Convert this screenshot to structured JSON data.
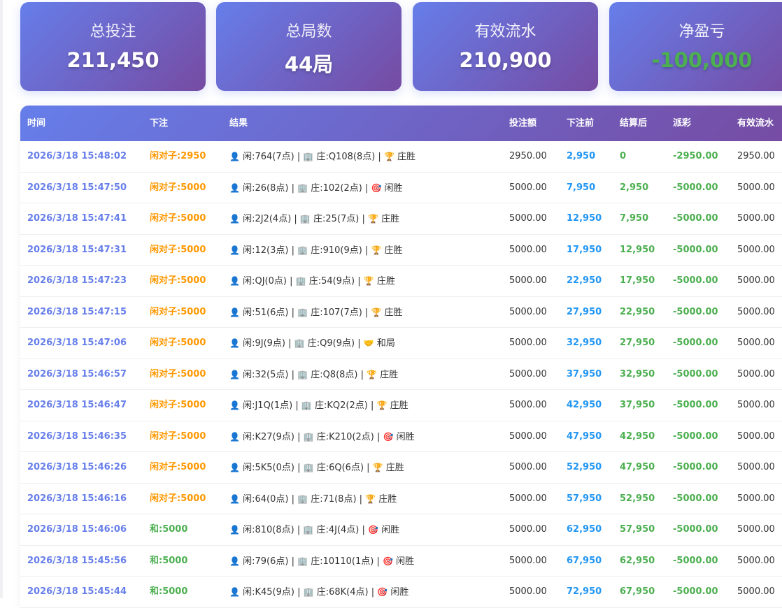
{
  "summary": [
    {
      "label": "总投注",
      "value": "211,450"
    },
    {
      "label": "总局数",
      "value": "44局"
    },
    {
      "label": "有效流水",
      "value": "210,900"
    },
    {
      "label": "净盈亏",
      "value": "-100,000",
      "color": "#4caf50"
    }
  ],
  "table": {
    "headers": [
      "时间",
      "下注",
      "结果",
      "投注额",
      "下注前",
      "结算后",
      "派彩",
      "有效流水"
    ],
    "colors": {
      "time": "#667eea",
      "bet_pair": "#ff9800",
      "bet_tie": "#4caf50",
      "before": "#2196f3",
      "after": "#4caf50",
      "payout": "#4caf50"
    },
    "icons": {
      "player": "bust-silhouette-icon",
      "banker": "office-building-icon",
      "banker_win": "trophy-icon",
      "player_win": "target-icon",
      "tie": "handshake-icon"
    },
    "rows": [
      {
        "time": "2026/3/18 15:48:02",
        "bet": "闲对子:2950",
        "bet_type": "pair",
        "player": "闲:764(7点)",
        "banker": "庄:Q108(8点)",
        "outcome": "庄胜",
        "outcome_icon": "banker_win",
        "amount": "2950.00",
        "before": "2,950",
        "after": "0",
        "payout": "-2950.00",
        "effective": "2950.00"
      },
      {
        "time": "2026/3/18 15:47:50",
        "bet": "闲对子:5000",
        "bet_type": "pair",
        "player": "闲:26(8点)",
        "banker": "庄:102(2点)",
        "outcome": "闲胜",
        "outcome_icon": "player_win",
        "amount": "5000.00",
        "before": "7,950",
        "after": "2,950",
        "payout": "-5000.00",
        "effective": "5000.00"
      },
      {
        "time": "2026/3/18 15:47:41",
        "bet": "闲对子:5000",
        "bet_type": "pair",
        "player": "闲:2J2(4点)",
        "banker": "庄:25(7点)",
        "outcome": "庄胜",
        "outcome_icon": "banker_win",
        "amount": "5000.00",
        "before": "12,950",
        "after": "7,950",
        "payout": "-5000.00",
        "effective": "5000.00"
      },
      {
        "time": "2026/3/18 15:47:31",
        "bet": "闲对子:5000",
        "bet_type": "pair",
        "player": "闲:12(3点)",
        "banker": "庄:910(9点)",
        "outcome": "庄胜",
        "outcome_icon": "banker_win",
        "amount": "5000.00",
        "before": "17,950",
        "after": "12,950",
        "payout": "-5000.00",
        "effective": "5000.00"
      },
      {
        "time": "2026/3/18 15:47:23",
        "bet": "闲对子:5000",
        "bet_type": "pair",
        "player": "闲:QJ(0点)",
        "banker": "庄:54(9点)",
        "outcome": "庄胜",
        "outcome_icon": "banker_win",
        "amount": "5000.00",
        "before": "22,950",
        "after": "17,950",
        "payout": "-5000.00",
        "effective": "5000.00"
      },
      {
        "time": "2026/3/18 15:47:15",
        "bet": "闲对子:5000",
        "bet_type": "pair",
        "player": "闲:51(6点)",
        "banker": "庄:107(7点)",
        "outcome": "庄胜",
        "outcome_icon": "banker_win",
        "amount": "5000.00",
        "before": "27,950",
        "after": "22,950",
        "payout": "-5000.00",
        "effective": "5000.00"
      },
      {
        "time": "2026/3/18 15:47:06",
        "bet": "闲对子:5000",
        "bet_type": "pair",
        "player": "闲:9J(9点)",
        "banker": "庄:Q9(9点)",
        "outcome": "和局",
        "outcome_icon": "tie",
        "amount": "5000.00",
        "before": "32,950",
        "after": "27,950",
        "payout": "-5000.00",
        "effective": "5000.00"
      },
      {
        "time": "2026/3/18 15:46:57",
        "bet": "闲对子:5000",
        "bet_type": "pair",
        "player": "闲:32(5点)",
        "banker": "庄:Q8(8点)",
        "outcome": "庄胜",
        "outcome_icon": "banker_win",
        "amount": "5000.00",
        "before": "37,950",
        "after": "32,950",
        "payout": "-5000.00",
        "effective": "5000.00"
      },
      {
        "time": "2026/3/18 15:46:47",
        "bet": "闲对子:5000",
        "bet_type": "pair",
        "player": "闲:J1Q(1点)",
        "banker": "庄:KQ2(2点)",
        "outcome": "庄胜",
        "outcome_icon": "banker_win",
        "amount": "5000.00",
        "before": "42,950",
        "after": "37,950",
        "payout": "-5000.00",
        "effective": "5000.00"
      },
      {
        "time": "2026/3/18 15:46:35",
        "bet": "闲对子:5000",
        "bet_type": "pair",
        "player": "闲:K27(9点)",
        "banker": "庄:K210(2点)",
        "outcome": "闲胜",
        "outcome_icon": "player_win",
        "amount": "5000.00",
        "before": "47,950",
        "after": "42,950",
        "payout": "-5000.00",
        "effective": "5000.00"
      },
      {
        "time": "2026/3/18 15:46:26",
        "bet": "闲对子:5000",
        "bet_type": "pair",
        "player": "闲:5K5(0点)",
        "banker": "庄:6Q(6点)",
        "outcome": "庄胜",
        "outcome_icon": "banker_win",
        "amount": "5000.00",
        "before": "52,950",
        "after": "47,950",
        "payout": "-5000.00",
        "effective": "5000.00"
      },
      {
        "time": "2026/3/18 15:46:16",
        "bet": "闲对子:5000",
        "bet_type": "pair",
        "player": "闲:64(0点)",
        "banker": "庄:71(8点)",
        "outcome": "庄胜",
        "outcome_icon": "banker_win",
        "amount": "5000.00",
        "before": "57,950",
        "after": "52,950",
        "payout": "-5000.00",
        "effective": "5000.00"
      },
      {
        "time": "2026/3/18 15:46:06",
        "bet": "和:5000",
        "bet_type": "tie",
        "player": "闲:810(8点)",
        "banker": "庄:4J(4点)",
        "outcome": "闲胜",
        "outcome_icon": "player_win",
        "amount": "5000.00",
        "before": "62,950",
        "after": "57,950",
        "payout": "-5000.00",
        "effective": "5000.00"
      },
      {
        "time": "2026/3/18 15:45:56",
        "bet": "和:5000",
        "bet_type": "tie",
        "player": "闲:79(6点)",
        "banker": "庄:10110(1点)",
        "outcome": "闲胜",
        "outcome_icon": "player_win",
        "amount": "5000.00",
        "before": "67,950",
        "after": "62,950",
        "payout": "-5000.00",
        "effective": "5000.00"
      },
      {
        "time": "2026/3/18 15:45:44",
        "bet": "和:5000",
        "bet_type": "tie",
        "player": "闲:K45(9点)",
        "banker": "庄:68K(4点)",
        "outcome": "闲胜",
        "outcome_icon": "player_win",
        "amount": "5000.00",
        "before": "72,950",
        "after": "67,950",
        "payout": "-5000.00",
        "effective": "5000.00"
      }
    ]
  }
}
